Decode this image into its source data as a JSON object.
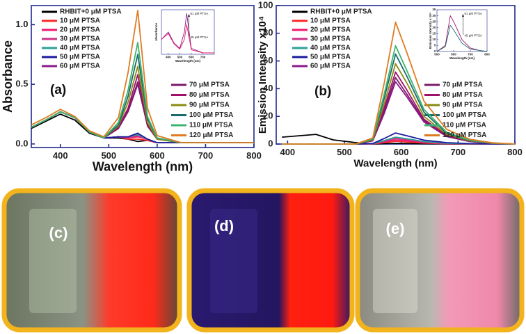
{
  "chart_data": [
    {
      "type": "line",
      "panel_label": "(a)",
      "x_label": "Wavelength (nm)",
      "y_label": "Absorbance",
      "xlim": [
        340,
        800
      ],
      "xticks": [
        400,
        500,
        600,
        700,
        800
      ],
      "ylim": [
        -0.03,
        1.16
      ],
      "yticks": [
        {
          "value": 0,
          "label": "0.0"
        },
        {
          "value": 0.5,
          "label": "0.5"
        },
        {
          "value": 1,
          "label": "1.0"
        }
      ],
      "legend": "upper left",
      "x": [
        340,
        370,
        400,
        430,
        460,
        490,
        520,
        540,
        560,
        580,
        600,
        650,
        700,
        750,
        800
      ],
      "series": [
        {
          "name": "RHBIT+0 μM PTSA",
          "color": "#000000",
          "values": [
            0.13,
            0.19,
            0.25,
            0.2,
            0.09,
            0.05,
            0.05,
            0.04,
            0.02,
            0.03,
            0.01,
            0.01,
            0.01,
            0.01,
            0.01
          ]
        },
        {
          "name": "10 μM PTSA",
          "color": "#ff2a2a",
          "values": [
            0.14,
            0.2,
            0.27,
            0.22,
            0.1,
            0.05,
            0.06,
            0.04,
            0.04,
            0.03,
            0.01,
            0.01,
            0.01,
            0.01,
            0.01
          ]
        },
        {
          "name": "20 μM PTSA",
          "color": "#ee1a6e",
          "values": [
            0.14,
            0.2,
            0.27,
            0.22,
            0.1,
            0.05,
            0.06,
            0.05,
            0.06,
            0.04,
            0.01,
            0.01,
            0.01,
            0.01,
            0.01
          ]
        },
        {
          "name": "30 μM PTSA",
          "color": "#cc3388",
          "values": [
            0.14,
            0.2,
            0.27,
            0.22,
            0.1,
            0.05,
            0.06,
            0.05,
            0.07,
            0.04,
            0.01,
            0.01,
            0.01,
            0.01,
            0.01
          ]
        },
        {
          "name": "40 μM PTSA",
          "color": "#2aa198",
          "values": [
            0.14,
            0.2,
            0.27,
            0.22,
            0.1,
            0.05,
            0.06,
            0.06,
            0.08,
            0.04,
            0.01,
            0.01,
            0.01,
            0.01,
            0.01
          ]
        },
        {
          "name": "50 μM PTSA",
          "color": "#1a1aa0",
          "values": [
            0.14,
            0.2,
            0.27,
            0.22,
            0.1,
            0.05,
            0.06,
            0.06,
            0.09,
            0.04,
            0.01,
            0.01,
            0.01,
            0.01,
            0.01
          ]
        },
        {
          "name": "60 μM PTSA",
          "color": "#8b1a8b",
          "values": [
            0.14,
            0.2,
            0.27,
            0.22,
            0.1,
            0.05,
            0.13,
            0.27,
            0.5,
            0.15,
            0.04,
            0.01,
            0.01,
            0.01,
            0.01
          ]
        },
        {
          "name": "70 μM PTSA",
          "color": "#7a1a6a",
          "values": [
            0.14,
            0.2,
            0.27,
            0.22,
            0.1,
            0.05,
            0.13,
            0.28,
            0.52,
            0.15,
            0.04,
            0.01,
            0.01,
            0.01,
            0.01
          ]
        },
        {
          "name": "80 μM PTSA",
          "color": "#a0106a",
          "values": [
            0.14,
            0.2,
            0.27,
            0.22,
            0.1,
            0.05,
            0.14,
            0.3,
            0.58,
            0.17,
            0.04,
            0.01,
            0.01,
            0.01,
            0.01
          ]
        },
        {
          "name": "90 μM PTSA",
          "color": "#8a8a10",
          "values": [
            0.14,
            0.2,
            0.27,
            0.22,
            0.1,
            0.05,
            0.15,
            0.35,
            0.65,
            0.18,
            0.04,
            0.01,
            0.01,
            0.01,
            0.01
          ]
        },
        {
          "name": "100 μM PTSA",
          "color": "#1a6b6b",
          "values": [
            0.14,
            0.2,
            0.27,
            0.22,
            0.1,
            0.05,
            0.16,
            0.4,
            0.75,
            0.21,
            0.05,
            0.01,
            0.01,
            0.01,
            0.01
          ]
        },
        {
          "name": "110 μM PTSA",
          "color": "#3cb371",
          "values": [
            0.14,
            0.2,
            0.27,
            0.22,
            0.1,
            0.05,
            0.18,
            0.45,
            0.85,
            0.23,
            0.05,
            0.01,
            0.01,
            0.01,
            0.01
          ]
        },
        {
          "name": "120 μM PTSA",
          "color": "#e07b20",
          "values": [
            0.16,
            0.22,
            0.29,
            0.23,
            0.11,
            0.06,
            0.22,
            0.6,
            1.12,
            0.3,
            0.07,
            0.01,
            0.01,
            0.01,
            0.01
          ]
        }
      ],
      "inset": {
        "type": "line",
        "x_label": "Wavelength (nm)",
        "y_label": "Absorbance",
        "xlim": [
          340,
          800
        ],
        "xticks": [
          400,
          500,
          600,
          700
        ],
        "ylim": [
          0,
          0.6
        ],
        "annotations": [
          "61 μM PTSA",
          "45 μM PTSA"
        ],
        "x": [
          340,
          400,
          450,
          500,
          540,
          560,
          600,
          700,
          800
        ],
        "series": [
          {
            "color": "#8b1a8b",
            "values": [
              0.2,
              0.3,
              0.15,
              0.08,
              0.3,
              0.55,
              0.08,
              0.02,
              0.02
            ]
          },
          {
            "color": "#ee1a6e",
            "values": [
              0.2,
              0.28,
              0.14,
              0.07,
              0.2,
              0.4,
              0.06,
              0.02,
              0.02
            ]
          }
        ]
      }
    },
    {
      "type": "line",
      "panel_label": "(b)",
      "x_label": "Wavelength (nm)",
      "y_label": "Emission Intensity x10⁴",
      "xlim": [
        380,
        800
      ],
      "xticks": [
        400,
        500,
        600,
        700,
        800
      ],
      "ylim": [
        0,
        100
      ],
      "yticks": [
        0,
        20,
        40,
        60,
        80,
        100
      ],
      "legend": "upper left",
      "x": [
        390,
        420,
        450,
        480,
        520,
        550,
        570,
        590,
        610,
        640,
        680,
        720,
        760,
        800
      ],
      "series": [
        {
          "name": "RHBIT+0 μM PTSA",
          "color": "#000000",
          "values": [
            5,
            6,
            7,
            3,
            1,
            0,
            0.3,
            0.5,
            0.4,
            0.2,
            0.1,
            0,
            0,
            0
          ]
        },
        {
          "name": "10 μM PTSA",
          "color": "#ff2a2a",
          "values": [
            0,
            0,
            0,
            0,
            0,
            0.1,
            1,
            2,
            1.5,
            0.7,
            0.2,
            0.1,
            0,
            0
          ]
        },
        {
          "name": "20 μM PTSA",
          "color": "#ee1a6e",
          "values": [
            0,
            0,
            0,
            0,
            0,
            0.2,
            1.5,
            3,
            2.3,
            1.1,
            0.4,
            0.1,
            0,
            0
          ]
        },
        {
          "name": "30 μM PTSA",
          "color": "#cc3388",
          "values": [
            0,
            0,
            0,
            0,
            0,
            0.2,
            2,
            4,
            3,
            1.4,
            0.5,
            0.2,
            0,
            0
          ]
        },
        {
          "name": "40 μM PTSA",
          "color": "#2aa198",
          "values": [
            0,
            0,
            0,
            0,
            0,
            0.3,
            2.5,
            5,
            3.8,
            1.8,
            0.6,
            0.2,
            0.1,
            0
          ]
        },
        {
          "name": "50 μM PTSA",
          "color": "#1a1aa0",
          "values": [
            0,
            0,
            0,
            0,
            0,
            0.4,
            4,
            8,
            6,
            2.8,
            1,
            0.3,
            0.1,
            0
          ]
        },
        {
          "name": "60 μM PTSA",
          "color": "#8b1a8b",
          "values": [
            0,
            0,
            0,
            0,
            0,
            2.3,
            22,
            45,
            34,
            16,
            5.4,
            1.8,
            0.5,
            0
          ]
        },
        {
          "name": "70 μM PTSA",
          "color": "#7a1a6a",
          "values": [
            0,
            0,
            0,
            0,
            0,
            2.4,
            24,
            48,
            36,
            17,
            5.8,
            1.9,
            0.5,
            0
          ]
        },
        {
          "name": "80 μM PTSA",
          "color": "#a0106a",
          "values": [
            0,
            0,
            0,
            0,
            0,
            2.6,
            26,
            52,
            39,
            18,
            6.2,
            2.1,
            0.5,
            0
          ]
        },
        {
          "name": "90 μM PTSA",
          "color": "#8a8a10",
          "values": [
            0,
            0,
            0,
            0,
            0,
            2.9,
            29,
            58,
            44,
            20,
            7,
            2.3,
            0.6,
            0
          ]
        },
        {
          "name": "100 μM PTSA",
          "color": "#1a6b6b",
          "values": [
            0,
            0,
            0,
            0,
            0,
            3.3,
            33,
            65,
            49,
            23,
            7.8,
            2.6,
            0.7,
            0
          ]
        },
        {
          "name": "110 μM PTSA",
          "color": "#3cb371",
          "values": [
            0,
            0,
            0,
            0,
            0,
            3.6,
            36,
            71,
            53,
            25,
            8.5,
            2.8,
            0.7,
            0
          ]
        },
        {
          "name": "120 μM PTSA",
          "color": "#e07b20",
          "values": [
            0,
            0,
            0,
            0,
            0,
            4.4,
            44,
            88,
            66,
            31,
            10.6,
            3.5,
            0.9,
            0
          ]
        }
      ],
      "inset": {
        "type": "line",
        "x_label": "Wavelength (nm)",
        "y_label": "Emission Intensity x 10⁴",
        "xlim": [
          500,
          800
        ],
        "xticks": [
          500,
          600,
          700,
          800
        ],
        "ylim": [
          0,
          35
        ],
        "yticks": [
          0,
          5,
          10,
          15,
          20,
          25,
          30,
          35
        ],
        "annotations": [
          "61 μM PTSA",
          "45 μM PTSA"
        ],
        "x": [
          500,
          550,
          580,
          600,
          650,
          700,
          750,
          800
        ],
        "series": [
          {
            "color": "#a0106a",
            "values": [
              0,
              5,
              30,
              25,
              10,
              3,
              1,
              0
            ]
          },
          {
            "color": "#1a6b6b",
            "values": [
              0,
              4,
              22,
              18,
              7,
              2,
              1,
              0
            ]
          }
        ]
      }
    }
  ],
  "photos": {
    "labels": [
      "(c)",
      "(d)",
      "(e)"
    ]
  }
}
